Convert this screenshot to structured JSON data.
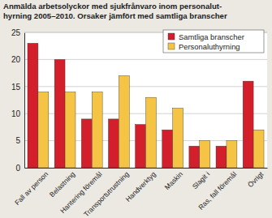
{
  "chart_data": {
    "type": "bar",
    "title": "Anmälda arbetsolyckor med sjukfrånvaro inom personalut-\nhyrning 2005–2010. Orsaker jämfört med samtliga branscher",
    "categories": [
      "Fall av person",
      "Belastning",
      "Hantering föremål",
      "Transportutrustning",
      "Handverktyg",
      "Maskin",
      "Slagit i",
      "Ras, fall föremål",
      "Övrigt"
    ],
    "series": [
      {
        "name": "Samtliga branscher",
        "color": "#d21f2b",
        "values": [
          23,
          20,
          9,
          9,
          8,
          7,
          4,
          4,
          16
        ]
      },
      {
        "name": "Personaluthyrning",
        "color": "#f6c445",
        "values": [
          14,
          14,
          14,
          17,
          13,
          11,
          5,
          5,
          7
        ]
      }
    ],
    "ylim": [
      0,
      25
    ],
    "yticks": [
      0,
      5,
      10,
      15,
      20,
      25
    ],
    "grid": true,
    "legend": "top-right"
  }
}
